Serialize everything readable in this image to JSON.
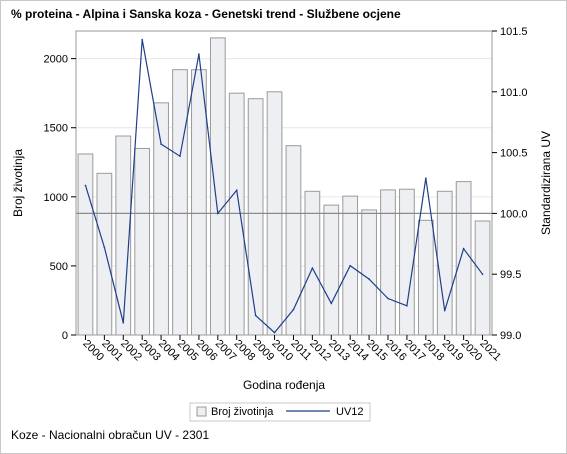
{
  "title": "% proteina - Alpina i Sanska koza - Genetski trend - Službene ocjene",
  "footnote": "Koze - Nacionalni obračun UV - 2301",
  "colors": {
    "bar_fill": "#edeff3",
    "bar_stroke": "#9a9a9a",
    "line": "#1f3f8c",
    "reference_line": "#8a8a8a",
    "gridline": "#e6e6e6"
  },
  "chart_data": {
    "type": "bar+line",
    "title": "% proteina - Alpina i Sanska koza - Genetski trend - Službene ocjene",
    "xlabel": "Godina rođenja",
    "ylabel_left": "Broj životinja",
    "ylabel_right": "Standardizirana UV",
    "categories": [
      "2000",
      "2001",
      "2002",
      "2003",
      "2004",
      "2005",
      "2006",
      "2007",
      "2008",
      "2009",
      "2010",
      "2011",
      "2012",
      "2013",
      "2014",
      "2015",
      "2016",
      "2017",
      "2018",
      "2019",
      "2020",
      "2021"
    ],
    "ylim_left": [
      0,
      2200
    ],
    "yticks_left": [
      0,
      500,
      1000,
      1500,
      2000
    ],
    "ylim_right": [
      99.0,
      101.5
    ],
    "yticks_right": [
      "99.0",
      "99.5",
      "100.0",
      "100.5",
      "101.0",
      "101.5"
    ],
    "reference_line_right": 100.0,
    "gridlines": "horizontal",
    "legend_position": "bottom",
    "series": [
      {
        "name": "Broj životinja",
        "type": "bar",
        "axis": "left",
        "values": [
          1310,
          1170,
          1440,
          1350,
          1680,
          1920,
          1920,
          2150,
          1750,
          1710,
          1760,
          1370,
          1040,
          940,
          1005,
          905,
          1050,
          1055,
          830,
          1040,
          1110,
          825
        ]
      },
      {
        "name": "UV12",
        "type": "line",
        "axis": "right",
        "values": [
          100.23,
          99.72,
          99.1,
          101.43,
          100.57,
          100.47,
          101.31,
          100.0,
          100.19,
          99.16,
          99.02,
          99.21,
          99.55,
          99.26,
          99.57,
          99.46,
          99.3,
          99.24,
          100.29,
          99.2,
          99.71,
          99.5
        ]
      }
    ]
  }
}
